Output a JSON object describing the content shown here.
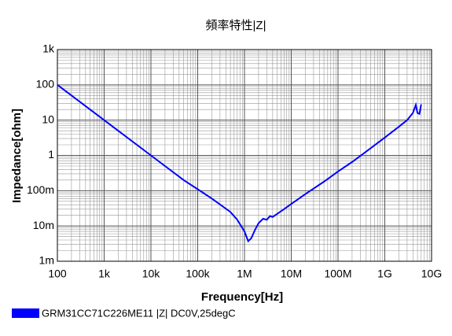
{
  "chart_data": {
    "type": "line",
    "title": "頻率特性|Z|",
    "x_label": "Frequency[Hz]",
    "y_label": "Impedance[ohm]",
    "xscale": "log",
    "yscale": "log",
    "grid": true,
    "xlim": [
      100,
      10000000000
    ],
    "xticks": [
      {
        "value": 100,
        "label": "100"
      },
      {
        "value": 1000,
        "label": "1k"
      },
      {
        "value": 10000,
        "label": "10k"
      },
      {
        "value": 100000,
        "label": "100k"
      },
      {
        "value": 1000000,
        "label": "1M"
      },
      {
        "value": 10000000,
        "label": "10M"
      },
      {
        "value": 100000000,
        "label": "100M"
      },
      {
        "value": 1000000000,
        "label": "1G"
      },
      {
        "value": 10000000000,
        "label": "10G"
      }
    ],
    "ylim": [
      0.001,
      1000
    ],
    "yticks": [
      {
        "value": 0.001,
        "label": "1m"
      },
      {
        "value": 0.01,
        "label": "10m"
      },
      {
        "value": 0.1,
        "label": "100m"
      },
      1,
      10,
      100,
      {
        "value": 1000,
        "label": "1k"
      }
    ],
    "x": [
      100,
      200,
      500,
      1000,
      2000,
      5000,
      10000,
      20000,
      50000,
      100000,
      200000,
      500000,
      700000,
      1000000,
      1200000,
      1400000,
      1700000,
      2000000,
      2500000,
      3000000,
      3500000,
      4000000,
      5000000,
      7000000,
      10000000,
      20000000,
      50000000,
      100000000,
      200000000,
      500000000,
      1000000000,
      2000000000,
      3000000000,
      4000000000,
      4600000000,
      5000000000,
      5500000000,
      6000000000
    ],
    "series": [
      {
        "name": "GRM31CC71C226ME11 |Z| DC0V,25degC",
        "color": "#0000ff",
        "values": [
          100,
          50,
          20,
          10,
          5,
          2,
          1,
          0.5,
          0.2,
          0.11,
          0.06,
          0.025,
          0.015,
          0.007,
          0.0037,
          0.0045,
          0.008,
          0.012,
          0.016,
          0.015,
          0.019,
          0.018,
          0.022,
          0.03,
          0.042,
          0.08,
          0.18,
          0.35,
          0.65,
          1.6,
          3.2,
          6.5,
          10,
          16,
          27,
          16,
          15,
          28
        ]
      }
    ]
  }
}
